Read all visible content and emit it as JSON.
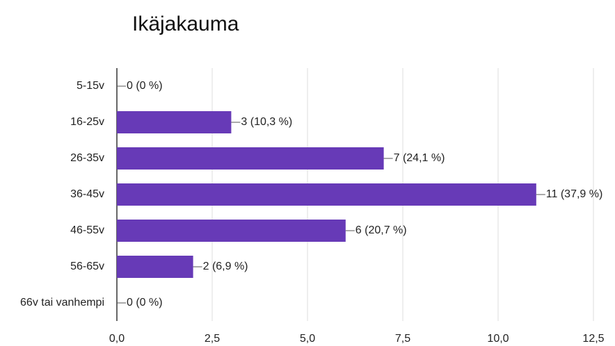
{
  "chart_data": {
    "type": "bar",
    "orientation": "horizontal",
    "title": "Ikäjakauma",
    "categories": [
      "5-15v",
      "16-25v",
      "26-35v",
      "36-45v",
      "46-55v",
      "56-65v",
      "66v tai vanhempi"
    ],
    "values": [
      0,
      3,
      7,
      11,
      6,
      2,
      0
    ],
    "value_labels": [
      "0 (0 %)",
      "3 (10,3 %)",
      "7 (24,1 %)",
      "11 (37,9 %)",
      "6 (20,7 %)",
      "2 (6,9 %)",
      "0 (0 %)"
    ],
    "color": "#673ab7",
    "xlim": [
      0,
      12.5
    ],
    "xticks": [
      {
        "value": 0,
        "label": "0,0"
      },
      {
        "value": 2.5,
        "label": "2,5"
      },
      {
        "value": 5,
        "label": "5,0"
      },
      {
        "value": 7.5,
        "label": "7,5"
      },
      {
        "value": 10,
        "label": "10,0"
      },
      {
        "value": 12.5,
        "label": "12,5"
      }
    ],
    "grid": true
  }
}
